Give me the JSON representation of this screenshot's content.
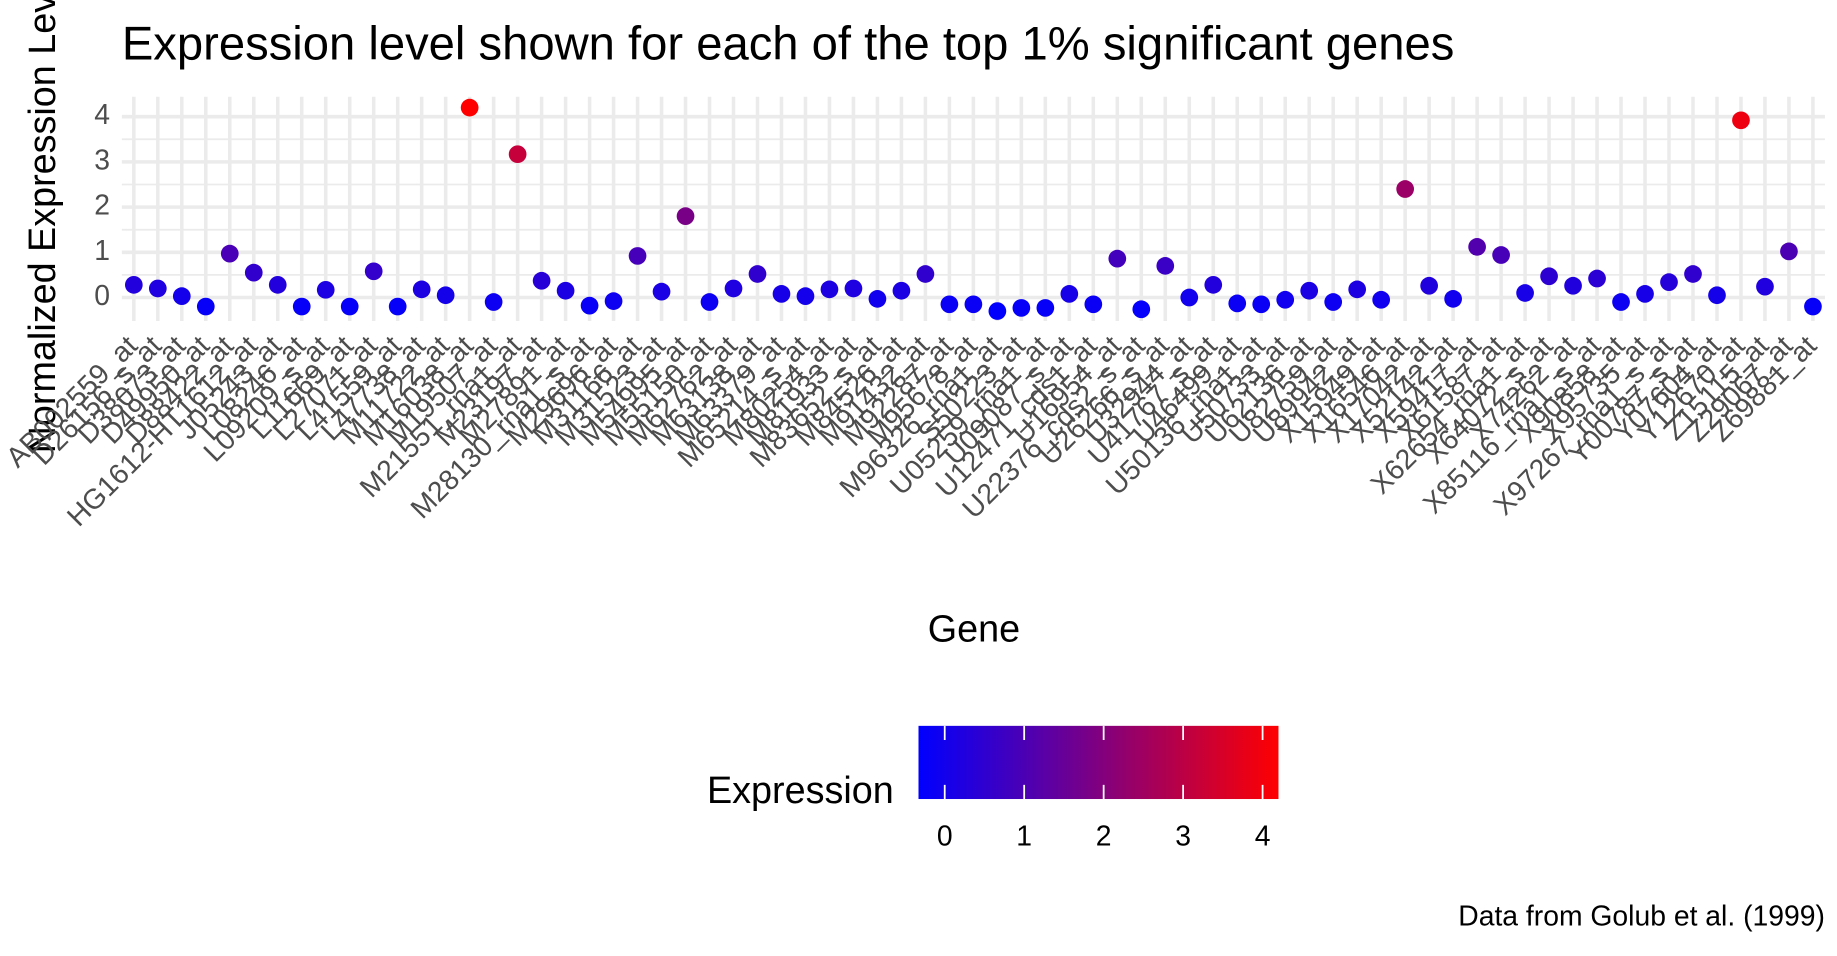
{
  "chart_data": {
    "type": "scatter",
    "title": "Expression level shown for each of the top 1% significant genes",
    "x_label": "Gene",
    "y_label": "Normalized Expression Level",
    "caption": "Data from Golub et al. (1999)",
    "categories": [
      "AB002559_at",
      "D26156_s_at",
      "D38073_at",
      "D49950_at",
      "D88422_at",
      "HG1612-HT1612_at",
      "J05243_at",
      "L08246_at",
      "L09209_s_at",
      "L11669_at",
      "L27071_at",
      "L41559_at",
      "L47738_at",
      "M11722_at",
      "M16038_at",
      "M19507_at",
      "M21551_rna1_at",
      "M23197_at",
      "M27891_at",
      "M28130_rna1_s_at",
      "M29696_at",
      "M31166_at",
      "M31523_at",
      "M54995_at",
      "M55150_at",
      "M62762_at",
      "M63138_at",
      "M63379_at",
      "M65214_s_at",
      "M80254_at",
      "M81933_at",
      "M83652_s_at",
      "M84526_at",
      "M91432_at",
      "M92287_at",
      "M95678_at",
      "M96326_rna1_at",
      "S50223_at",
      "U05259_rna1_at",
      "U09087_s_at",
      "U12471_cds1_at",
      "U16954_at",
      "U22376_cds2_s_at",
      "U26266_s_at",
      "U32944_at",
      "U41767_s_at",
      "U46499_at",
      "U50136_rna1_at",
      "U50733_at",
      "U62136_at",
      "U82759_at",
      "U89942_at",
      "X15949_at",
      "X16546_at",
      "X17042_at",
      "X52142_at",
      "X59417_at",
      "X61587_at",
      "X62654_rna1_at",
      "X64072_s_at",
      "X74262_at",
      "X85116_rna1_s_at",
      "X90858_at",
      "X95735_at",
      "X97267_rna1_s_at",
      "Y00787_s_at",
      "Y07604_at",
      "Y12670_at",
      "Z15115_at",
      "Z29067_at",
      "Z69881_at"
    ],
    "values": [
      0.28,
      0.2,
      0.03,
      -0.2,
      0.97,
      0.55,
      0.28,
      -0.2,
      0.17,
      -0.2,
      0.58,
      -0.2,
      0.18,
      0.05,
      4.2,
      -0.1,
      3.17,
      0.37,
      0.15,
      -0.18,
      -0.08,
      0.92,
      0.13,
      1.8,
      -0.1,
      0.2,
      0.52,
      0.08,
      0.03,
      0.18,
      0.2,
      -0.03,
      0.15,
      0.52,
      -0.15,
      -0.15,
      -0.3,
      -0.23,
      -0.23,
      0.08,
      -0.15,
      0.86,
      -0.26,
      0.7,
      0,
      0.28,
      -0.13,
      -0.15,
      -0.05,
      0.15,
      -0.1,
      0.18,
      -0.05,
      2.4,
      0.26,
      -0.03,
      1.12,
      0.94,
      0.1,
      0.47,
      0.26,
      0.42,
      -0.1,
      0.08,
      0.34,
      0.52,
      0.05,
      3.92,
      0.24,
      1.02,
      -0.2
    ],
    "ylim": [
      -0.52,
      4.44
    ],
    "yticks": [
      0,
      1,
      2,
      3,
      4
    ],
    "grid": true,
    "legend": {
      "title": "Expression",
      "position": "bottom",
      "low": "#0000ff",
      "high": "#ff0000",
      "lim": [
        -0.33,
        4.2
      ],
      "ticks": [
        0,
        1,
        2,
        3,
        4
      ]
    }
  }
}
